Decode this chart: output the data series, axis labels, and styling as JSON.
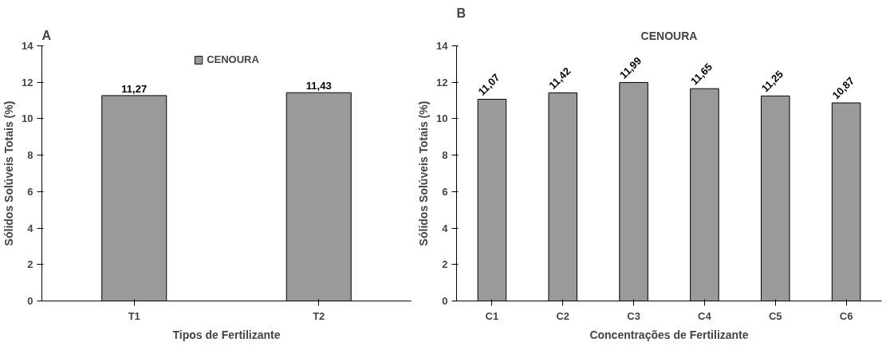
{
  "chart_data": [
    {
      "type": "bar",
      "title": "A",
      "xlabel": "Tipos de Fertilizante",
      "ylabel": "Sólidos Solúveis Totais (%)",
      "categories": [
        "T1",
        "T2"
      ],
      "series": [
        {
          "name": "CENOURA",
          "color": "#9a9a9a",
          "values": [
            11.27,
            11.43
          ],
          "value_labels": [
            "11,27",
            "11,43"
          ]
        }
      ],
      "ylim": [
        0,
        14
      ],
      "yticks": [
        0,
        2,
        4,
        6,
        8,
        10,
        12,
        14
      ],
      "legend": "top"
    },
    {
      "type": "bar",
      "title": "B",
      "subtitle": "CENOURA",
      "xlabel": "Concentrações de Fertilizante",
      "ylabel": "Sólidos Solúveis Totais (%)",
      "categories": [
        "C1",
        "C2",
        "C3",
        "C4",
        "C5",
        "C6"
      ],
      "series": [
        {
          "color": "#9a9a9a",
          "values": [
            11.07,
            11.42,
            11.99,
            11.65,
            11.25,
            10.87
          ],
          "value_labels": [
            "11,07",
            "11,42",
            "11,99",
            "11,65",
            "11,25",
            "10,87"
          ]
        }
      ],
      "ylim": [
        0,
        14
      ],
      "yticks": [
        0,
        2,
        4,
        6,
        8,
        10,
        12,
        14
      ]
    }
  ]
}
